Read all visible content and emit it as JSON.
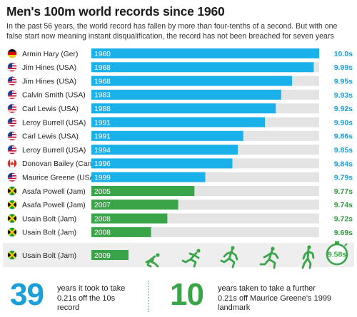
{
  "header": {
    "title": "Men's 100m world records since 1960",
    "subtitle": "In the past 56 years, the world record has fallen by more than four-tenths of a second. But with one false start now meaning instant disqualification, the record has not been breached for seven years"
  },
  "chart_data": {
    "type": "bar",
    "orientation": "horizontal",
    "xlim": [
      9.58,
      10.0
    ],
    "colors": {
      "blue": "#1ab0ea",
      "green": "#3aa548",
      "track": "#e4e4e4",
      "label_blue": "#1a9fd9",
      "label_green": "#2f9a3e"
    },
    "records": [
      {
        "athlete": "Armin Hary (Ger)",
        "year": "1960",
        "time": 10.0,
        "label": "10.0s",
        "flag": "ger",
        "color": "blue"
      },
      {
        "athlete": "Jim Hines (USA)",
        "year": "1968",
        "time": 9.99,
        "label": "9.99s",
        "flag": "usa",
        "color": "blue"
      },
      {
        "athlete": "Jim Hines (USA)",
        "year": "1968",
        "time": 9.95,
        "label": "9.95s",
        "flag": "usa",
        "color": "blue"
      },
      {
        "athlete": "Calvin Smith (USA)",
        "year": "1983",
        "time": 9.93,
        "label": "9.93s",
        "flag": "usa",
        "color": "blue"
      },
      {
        "athlete": "Carl Lewis (USA)",
        "year": "1988",
        "time": 9.92,
        "label": "9.92s",
        "flag": "usa",
        "color": "blue"
      },
      {
        "athlete": "Leroy Burrell (USA)",
        "year": "1991",
        "time": 9.9,
        "label": "9.90s",
        "flag": "usa",
        "color": "blue"
      },
      {
        "athlete": "Carl Lewis (USA)",
        "year": "1991",
        "time": 9.86,
        "label": "9.86s",
        "flag": "usa",
        "color": "blue"
      },
      {
        "athlete": "Leroy Burrell (USA)",
        "year": "1994",
        "time": 9.85,
        "label": "9.85s",
        "flag": "usa",
        "color": "blue"
      },
      {
        "athlete": "Donovan Bailey (Can)",
        "year": "1996",
        "time": 9.84,
        "label": "9.84s",
        "flag": "can",
        "color": "blue"
      },
      {
        "athlete": "Maurice Greene (USA)",
        "year": "1999",
        "time": 9.79,
        "label": "9.79s",
        "flag": "usa",
        "color": "blue"
      },
      {
        "athlete": "Asafa Powell (Jam)",
        "year": "2005",
        "time": 9.77,
        "label": "9.77s",
        "flag": "jam",
        "color": "green"
      },
      {
        "athlete": "Asafa Powell (Jam)",
        "year": "2007",
        "time": 9.74,
        "label": "9.74s",
        "flag": "jam",
        "color": "green"
      },
      {
        "athlete": "Usain Bolt (Jam)",
        "year": "2008",
        "time": 9.72,
        "label": "9.72s",
        "flag": "jam",
        "color": "green"
      },
      {
        "athlete": "Usain Bolt (Jam)",
        "year": "2008",
        "time": 9.69,
        "label": "9.69s",
        "flag": "jam",
        "color": "green"
      }
    ],
    "final_record": {
      "athlete": "Usain Bolt (Jam)",
      "year": "2009",
      "time": 9.58,
      "badge": "9.58s",
      "flag": "jam",
      "icon": "runner-sequence-stopwatch-icons"
    }
  },
  "stats": [
    {
      "number": "39",
      "text": "years it took to take 0.21s off the 10s record",
      "color": "#1a9fd9"
    },
    {
      "number": "10",
      "text": "years taken to take a further 0.21s off Maurice Greene's 1999 landmark",
      "color": "#3aa548"
    }
  ]
}
